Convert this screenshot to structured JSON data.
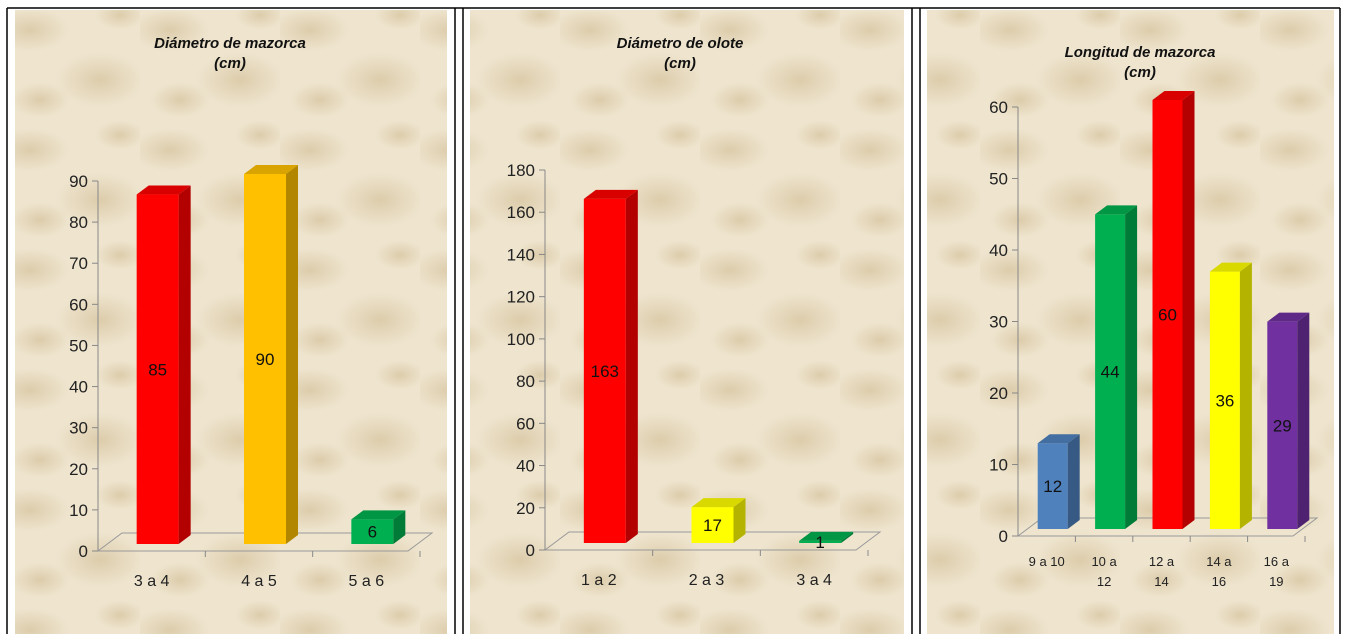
{
  "chart_data": [
    {
      "type": "bar",
      "title": [
        "Diámetro de mazorca",
        "(cm)"
      ],
      "categories": [
        "3 a 4",
        "4 a 5",
        "5 a 6"
      ],
      "values": [
        85,
        90,
        6
      ],
      "colors": [
        "#ff0000",
        "#ffc000",
        "#00b050"
      ],
      "ylim": [
        0,
        90
      ],
      "yticks": [
        0,
        10,
        20,
        30,
        40,
        50,
        60,
        70,
        80,
        90
      ]
    },
    {
      "type": "bar",
      "title": [
        "Diámetro de olote",
        "(cm)"
      ],
      "categories": [
        "1 a 2",
        "2 a 3",
        "3 a 4"
      ],
      "values": [
        163,
        17,
        1
      ],
      "colors": [
        "#ff0000",
        "#ffff00",
        "#00b050"
      ],
      "ylim": [
        0,
        180
      ],
      "yticks": [
        0,
        20,
        40,
        60,
        80,
        100,
        120,
        140,
        160,
        180
      ]
    },
    {
      "type": "bar",
      "title": [
        "Longitud de mazorca",
        "(cm)"
      ],
      "categories": [
        "9 a 10",
        "10 a 12",
        "12 a 14",
        "14 a 16",
        "16 a 19"
      ],
      "values": [
        12,
        44,
        60,
        36,
        29
      ],
      "colors": [
        "#4f81bd",
        "#00b050",
        "#ff0000",
        "#ffff00",
        "#7030a0"
      ],
      "ylim": [
        0,
        60
      ],
      "yticks": [
        0,
        10,
        20,
        30,
        40,
        50,
        60
      ]
    }
  ]
}
